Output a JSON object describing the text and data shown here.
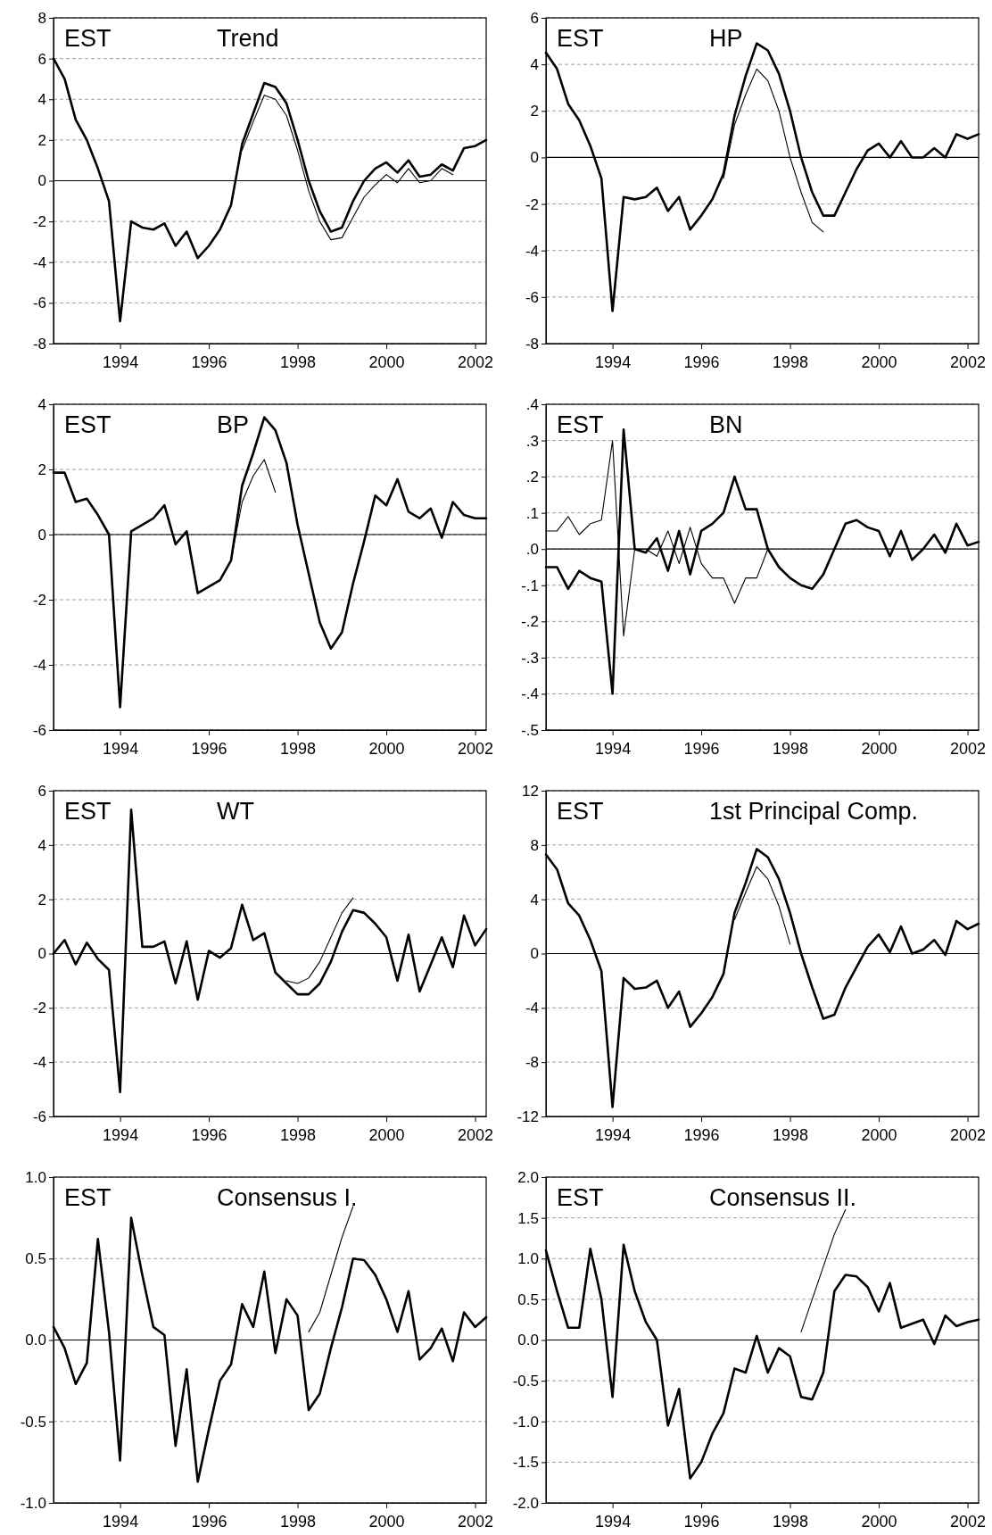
{
  "chart_data": [
    {
      "type": "line",
      "title": "Trend",
      "annotations": [
        "EST"
      ],
      "x": [
        1992.5,
        1992.75,
        1993,
        1993.25,
        1993.5,
        1993.75,
        1994,
        1994.25,
        1994.5,
        1994.75,
        1995,
        1995.25,
        1995.5,
        1995.75,
        1996,
        1996.25,
        1996.5,
        1996.75,
        1997,
        1997.25,
        1997.5,
        1997.75,
        1998,
        1998.25,
        1998.5,
        1998.75,
        1999,
        1999.25,
        1999.5,
        1999.75,
        2000,
        2000.25,
        2000.5,
        2000.75,
        2001,
        2001.25,
        2001.5,
        2001.75,
        2002,
        2002.25
      ],
      "xlim": [
        1992.5,
        2002.25
      ],
      "xticks": [
        1994,
        1996,
        1998,
        2000,
        2002
      ],
      "ylim": [
        -8,
        8
      ],
      "yticks": [
        -8,
        -6,
        -4,
        -2,
        0,
        2,
        4,
        6,
        8
      ],
      "grid": "y",
      "ref_lines": [
        {
          "axis": "y",
          "value": 0,
          "color": "#000000"
        }
      ],
      "series": [
        {
          "color": "#000000",
          "values": [
            6.0,
            5.0,
            3.0,
            2.0,
            0.6,
            -1.0,
            -6.9,
            -2.0,
            -2.3,
            -2.4,
            -2.1,
            -3.2,
            -2.5,
            -3.8,
            -3.2,
            -2.4,
            -1.2,
            1.8,
            3.3,
            4.8,
            4.6,
            3.8,
            2.0,
            0.0,
            -1.5,
            -2.5,
            -2.3,
            -1.0,
            0.0,
            0.6,
            0.9,
            0.4,
            1.0,
            0.2,
            0.3,
            0.8,
            0.5,
            1.6,
            1.7,
            2.0
          ]
        },
        {
          "color": "#000000",
          "values": [
            null,
            null,
            null,
            null,
            null,
            null,
            null,
            null,
            null,
            null,
            null,
            null,
            null,
            null,
            null,
            null,
            null,
            1.5,
            2.9,
            4.2,
            4.0,
            3.2,
            1.5,
            -0.5,
            -2.0,
            -2.9,
            -2.8,
            -1.8,
            -0.8,
            -0.2,
            0.3,
            -0.1,
            0.6,
            -0.1,
            0.0,
            0.6,
            0.3,
            null,
            null,
            null
          ]
        }
      ]
    },
    {
      "type": "line",
      "title": "HP",
      "annotations": [
        "EST"
      ],
      "x": [
        1992.5,
        1992.75,
        1993,
        1993.25,
        1993.5,
        1993.75,
        1994,
        1994.25,
        1994.5,
        1994.75,
        1995,
        1995.25,
        1995.5,
        1995.75,
        1996,
        1996.25,
        1996.5,
        1996.75,
        1997,
        1997.25,
        1997.5,
        1997.75,
        1998,
        1998.25,
        1998.5,
        1998.75,
        1999,
        1999.25,
        1999.5,
        1999.75,
        2000,
        2000.25,
        2000.5,
        2000.75,
        2001,
        2001.25,
        2001.5,
        2001.75,
        2002,
        2002.25
      ],
      "xlim": [
        1992.5,
        2002.25
      ],
      "xticks": [
        1994,
        1996,
        1998,
        2000,
        2002
      ],
      "ylim": [
        -8,
        6
      ],
      "yticks": [
        -8,
        -6,
        -4,
        -2,
        0,
        2,
        4,
        6
      ],
      "grid": "y",
      "ref_lines": [
        {
          "axis": "y",
          "value": 0,
          "color": "#000000"
        }
      ],
      "series": [
        {
          "color": "#000000",
          "values": [
            4.5,
            3.8,
            2.3,
            1.6,
            0.5,
            -0.9,
            -6.6,
            -1.7,
            -1.8,
            -1.7,
            -1.3,
            -2.3,
            -1.7,
            -3.1,
            -2.5,
            -1.8,
            -0.7,
            1.8,
            3.5,
            4.9,
            4.6,
            3.6,
            2.0,
            0.0,
            -1.5,
            -2.5,
            -2.5,
            -1.5,
            -0.5,
            0.3,
            0.6,
            0.0,
            0.7,
            0.0,
            0.0,
            0.4,
            0.0,
            1.0,
            0.8,
            1.0
          ]
        },
        {
          "color": "#000000",
          "values": [
            null,
            null,
            null,
            null,
            null,
            null,
            null,
            null,
            null,
            null,
            null,
            null,
            null,
            null,
            null,
            null,
            -0.9,
            1.4,
            2.7,
            3.8,
            3.3,
            2.0,
            0.0,
            -1.5,
            -2.8,
            -3.2,
            null,
            null,
            null,
            null,
            null,
            null,
            null,
            null,
            null,
            null,
            null,
            null,
            null,
            null
          ]
        }
      ]
    },
    {
      "type": "line",
      "title": "BP",
      "annotations": [
        "EST"
      ],
      "x": [
        1992.5,
        1992.75,
        1993,
        1993.25,
        1993.5,
        1993.75,
        1994,
        1994.25,
        1994.5,
        1994.75,
        1995,
        1995.25,
        1995.5,
        1995.75,
        1996,
        1996.25,
        1996.5,
        1996.75,
        1997,
        1997.25,
        1997.5,
        1997.75,
        1998,
        1998.25,
        1998.5,
        1998.75,
        1999,
        1999.25,
        1999.5,
        1999.75,
        2000,
        2000.25,
        2000.5,
        2000.75,
        2001,
        2001.25,
        2001.5,
        2001.75,
        2002,
        2002.25
      ],
      "xlim": [
        1992.5,
        2002.25
      ],
      "xticks": [
        1994,
        1996,
        1998,
        2000,
        2002
      ],
      "ylim": [
        -6,
        4
      ],
      "yticks": [
        -6,
        -4,
        -2,
        0,
        2,
        4
      ],
      "grid": "y",
      "ref_lines": [
        {
          "axis": "y",
          "value": 0,
          "color": "#000000"
        }
      ],
      "series": [
        {
          "color": "#000000",
          "values": [
            1.9,
            1.9,
            1.0,
            1.1,
            0.6,
            0.0,
            -5.3,
            0.1,
            0.3,
            0.5,
            0.9,
            -0.3,
            0.1,
            -1.8,
            -1.6,
            -1.4,
            -0.8,
            1.5,
            2.5,
            3.6,
            3.2,
            2.2,
            0.3,
            -1.2,
            -2.7,
            -3.5,
            -3.0,
            -1.5,
            -0.2,
            1.2,
            0.9,
            1.7,
            0.7,
            0.5,
            0.8,
            -0.1,
            1.0,
            0.6,
            0.5,
            0.5
          ]
        },
        {
          "color": "#000000",
          "values": [
            null,
            null,
            null,
            null,
            null,
            null,
            null,
            null,
            null,
            null,
            null,
            null,
            null,
            null,
            null,
            null,
            -0.8,
            1.0,
            1.8,
            2.3,
            1.3,
            null,
            null,
            null,
            null,
            null,
            null,
            null,
            null,
            null,
            null,
            null,
            null,
            null,
            null,
            null,
            null,
            null,
            null,
            null
          ]
        }
      ]
    },
    {
      "type": "line",
      "title": "BN",
      "annotations": [
        "EST"
      ],
      "x": [
        1992.5,
        1992.75,
        1993,
        1993.25,
        1993.5,
        1993.75,
        1994,
        1994.25,
        1994.5,
        1994.75,
        1995,
        1995.25,
        1995.5,
        1995.75,
        1996,
        1996.25,
        1996.5,
        1996.75,
        1997,
        1997.25,
        1997.5,
        1997.75,
        1998,
        1998.25,
        1998.5,
        1998.75,
        1999,
        1999.25,
        1999.5,
        1999.75,
        2000,
        2000.25,
        2000.5,
        2000.75,
        2001,
        2001.25,
        2001.5,
        2001.75,
        2002,
        2002.25
      ],
      "xlim": [
        1992.5,
        2002.25
      ],
      "xticks": [
        1994,
        1996,
        1998,
        2000,
        2002
      ],
      "ylim": [
        -0.5,
        0.4
      ],
      "yticks": [
        {
          "value": -0.5,
          "label": "-.5"
        },
        {
          "value": -0.4,
          "label": "-.4"
        },
        {
          "value": -0.3,
          "label": "-.3"
        },
        {
          "value": -0.2,
          "label": "-.2"
        },
        {
          "value": -0.1,
          "label": "-.1"
        },
        {
          "value": 0,
          "label": ".0"
        },
        {
          "value": 0.1,
          "label": ".1"
        },
        {
          "value": 0.2,
          "label": ".2"
        },
        {
          "value": 0.3,
          "label": ".3"
        },
        {
          "value": 0.4,
          "label": ".4"
        }
      ],
      "grid": "y",
      "ref_lines": [
        {
          "axis": "y",
          "value": 0,
          "color": "#000000"
        }
      ],
      "series": [
        {
          "color": "#000000",
          "values": [
            -0.05,
            -0.05,
            -0.11,
            -0.06,
            -0.08,
            -0.09,
            -0.4,
            0.33,
            0.0,
            -0.01,
            0.03,
            -0.06,
            0.05,
            -0.07,
            0.05,
            0.07,
            0.1,
            0.2,
            0.11,
            0.11,
            0.0,
            -0.05,
            -0.08,
            -0.1,
            -0.11,
            -0.07,
            0.0,
            0.07,
            0.08,
            0.06,
            0.05,
            -0.02,
            0.05,
            -0.03,
            0.0,
            0.04,
            -0.01,
            0.07,
            0.01,
            0.02
          ]
        },
        {
          "color": "#000000",
          "values": [
            0.05,
            0.05,
            0.09,
            0.04,
            0.07,
            0.08,
            0.3,
            -0.24,
            0.0,
            0.0,
            -0.02,
            0.05,
            -0.04,
            0.06,
            -0.04,
            -0.08,
            -0.08,
            -0.15,
            -0.08,
            -0.08,
            0.0,
            null,
            null,
            null,
            null,
            null,
            null,
            null,
            null,
            null,
            null,
            null,
            null,
            null,
            null,
            null,
            null,
            null,
            null,
            null
          ]
        }
      ]
    },
    {
      "type": "line",
      "title": "WT",
      "annotations": [
        "EST"
      ],
      "x": [
        1992.5,
        1992.75,
        1993,
        1993.25,
        1993.5,
        1993.75,
        1994,
        1994.25,
        1994.5,
        1994.75,
        1995,
        1995.25,
        1995.5,
        1995.75,
        1996,
        1996.25,
        1996.5,
        1996.75,
        1997,
        1997.25,
        1997.5,
        1997.75,
        1998,
        1998.25,
        1998.5,
        1998.75,
        1999,
        1999.25,
        1999.5,
        1999.75,
        2000,
        2000.25,
        2000.5,
        2000.75,
        2001,
        2001.25,
        2001.5,
        2001.75,
        2002,
        2002.25
      ],
      "xlim": [
        1992.5,
        2002.25
      ],
      "xticks": [
        1994,
        1996,
        1998,
        2000,
        2002
      ],
      "ylim": [
        -6,
        6
      ],
      "yticks": [
        -6,
        -4,
        -2,
        0,
        2,
        4,
        6
      ],
      "grid": "y",
      "ref_lines": [
        {
          "axis": "y",
          "value": 0,
          "color": "#000000"
        }
      ],
      "series": [
        {
          "color": "#000000",
          "values": [
            0.0,
            0.5,
            -0.4,
            0.4,
            -0.2,
            -0.6,
            -5.1,
            5.3,
            0.25,
            0.25,
            0.45,
            -1.1,
            0.45,
            -1.7,
            0.1,
            -0.15,
            0.2,
            1.8,
            0.5,
            0.75,
            -0.7,
            -1.1,
            -1.5,
            -1.5,
            -1.1,
            -0.3,
            0.8,
            1.6,
            1.5,
            1.1,
            0.6,
            -1.0,
            0.7,
            -1.4,
            -0.4,
            0.6,
            -0.5,
            1.4,
            0.3,
            0.9
          ]
        },
        {
          "color": "#000000",
          "values": [
            null,
            null,
            null,
            null,
            null,
            null,
            null,
            null,
            null,
            null,
            null,
            null,
            null,
            null,
            null,
            null,
            null,
            null,
            null,
            null,
            null,
            -1.0,
            -1.1,
            -0.9,
            -0.3,
            0.6,
            1.5,
            2.05,
            null,
            null,
            null,
            null,
            null,
            null,
            null,
            null,
            null,
            null,
            null,
            null
          ]
        }
      ]
    },
    {
      "type": "line",
      "title": "1st Principal Comp.",
      "annotations": [
        "EST"
      ],
      "x": [
        1992.5,
        1992.75,
        1993,
        1993.25,
        1993.5,
        1993.75,
        1994,
        1994.25,
        1994.5,
        1994.75,
        1995,
        1995.25,
        1995.5,
        1995.75,
        1996,
        1996.25,
        1996.5,
        1996.75,
        1997,
        1997.25,
        1997.5,
        1997.75,
        1998,
        1998.25,
        1998.5,
        1998.75,
        1999,
        1999.25,
        1999.5,
        1999.75,
        2000,
        2000.25,
        2000.5,
        2000.75,
        2001,
        2001.25,
        2001.5,
        2001.75,
        2002,
        2002.25
      ],
      "xlim": [
        1992.5,
        2002.25
      ],
      "xticks": [
        1994,
        1996,
        1998,
        2000,
        2002
      ],
      "ylim": [
        -12,
        12
      ],
      "yticks": [
        -12,
        -8,
        -4,
        0,
        4,
        8,
        12
      ],
      "grid": "y",
      "ref_lines": [
        {
          "axis": "y",
          "value": 0,
          "color": "#000000"
        }
      ],
      "series": [
        {
          "color": "#000000",
          "values": [
            7.3,
            6.2,
            3.7,
            2.8,
            1.0,
            -1.3,
            -11.3,
            -1.8,
            -2.6,
            -2.5,
            -2.0,
            -4.0,
            -2.8,
            -5.4,
            -4.4,
            -3.2,
            -1.5,
            3.0,
            5.2,
            7.7,
            7.1,
            5.5,
            3.0,
            0.0,
            -2.5,
            -4.8,
            -4.5,
            -2.5,
            -1.0,
            0.5,
            1.4,
            0.1,
            2.0,
            0.0,
            0.3,
            1.0,
            -0.1,
            2.4,
            1.8,
            2.2
          ]
        },
        {
          "color": "#000000",
          "values": [
            null,
            null,
            null,
            null,
            null,
            null,
            null,
            null,
            null,
            null,
            null,
            null,
            null,
            null,
            null,
            null,
            null,
            2.5,
            4.5,
            6.4,
            5.5,
            3.5,
            0.7,
            null,
            null,
            null,
            null,
            null,
            null,
            null,
            null,
            null,
            null,
            null,
            null,
            null,
            null,
            null,
            null,
            null
          ]
        }
      ]
    },
    {
      "type": "line",
      "title": "Consensus I.",
      "annotations": [
        "EST"
      ],
      "x": [
        1992.5,
        1992.75,
        1993,
        1993.25,
        1993.5,
        1993.75,
        1994,
        1994.25,
        1994.5,
        1994.75,
        1995,
        1995.25,
        1995.5,
        1995.75,
        1996,
        1996.25,
        1996.5,
        1996.75,
        1997,
        1997.25,
        1997.5,
        1997.75,
        1998,
        1998.25,
        1998.5,
        1998.75,
        1999,
        1999.25,
        1999.5,
        1999.75,
        2000,
        2000.25,
        2000.5,
        2000.75,
        2001,
        2001.25,
        2001.5,
        2001.75,
        2002,
        2002.25
      ],
      "xlim": [
        1992.5,
        2002.25
      ],
      "xticks": [
        1994,
        1996,
        1998,
        2000,
        2002
      ],
      "ylim": [
        -1,
        1
      ],
      "yticks": [
        {
          "value": -1,
          "label": "-1.0"
        },
        {
          "value": -0.5,
          "label": "-0.5"
        },
        {
          "value": 0,
          "label": "0.0"
        },
        {
          "value": 0.5,
          "label": "0.5"
        },
        {
          "value": 1,
          "label": "1.0"
        }
      ],
      "grid": "y",
      "ref_lines": [
        {
          "axis": "y",
          "value": 0,
          "color": "#000000"
        }
      ],
      "series": [
        {
          "color": "#000000",
          "values": [
            0.08,
            -0.05,
            -0.27,
            -0.14,
            0.62,
            0.05,
            -0.74,
            0.75,
            0.4,
            0.08,
            0.03,
            -0.65,
            -0.18,
            -0.87,
            -0.55,
            -0.25,
            -0.15,
            0.22,
            0.08,
            0.42,
            -0.08,
            0.25,
            0.15,
            -0.43,
            -0.33,
            -0.05,
            0.2,
            0.5,
            0.49,
            0.4,
            0.25,
            0.05,
            0.3,
            -0.12,
            -0.05,
            0.07,
            -0.13,
            0.17,
            0.08,
            0.14
          ]
        },
        {
          "color": "#000000",
          "values": [
            null,
            null,
            null,
            null,
            null,
            null,
            null,
            null,
            null,
            null,
            null,
            null,
            null,
            null,
            null,
            null,
            null,
            null,
            null,
            null,
            null,
            null,
            null,
            0.05,
            0.17,
            0.4,
            0.63,
            0.82,
            null,
            null,
            null,
            null,
            null,
            null,
            null,
            null,
            null,
            null,
            null,
            null
          ]
        }
      ]
    },
    {
      "type": "line",
      "title": "Consensus II.",
      "annotations": [
        "EST"
      ],
      "x": [
        1992.5,
        1992.75,
        1993,
        1993.25,
        1993.5,
        1993.75,
        1994,
        1994.25,
        1994.5,
        1994.75,
        1995,
        1995.25,
        1995.5,
        1995.75,
        1996,
        1996.25,
        1996.5,
        1996.75,
        1997,
        1997.25,
        1997.5,
        1997.75,
        1998,
        1998.25,
        1998.5,
        1998.75,
        1999,
        1999.25,
        1999.5,
        1999.75,
        2000,
        2000.25,
        2000.5,
        2000.75,
        2001,
        2001.25,
        2001.5,
        2001.75,
        2002,
        2002.25
      ],
      "xlim": [
        1992.5,
        2002.25
      ],
      "xticks": [
        1994,
        1996,
        1998,
        2000,
        2002
      ],
      "ylim": [
        -2,
        2
      ],
      "yticks": [
        {
          "value": -2,
          "label": "-2.0"
        },
        {
          "value": -1.5,
          "label": "-1.5"
        },
        {
          "value": -1,
          "label": "-1.0"
        },
        {
          "value": -0.5,
          "label": "-0.5"
        },
        {
          "value": 0,
          "label": "0.0"
        },
        {
          "value": 0.5,
          "label": "0.5"
        },
        {
          "value": 1,
          "label": "1.0"
        },
        {
          "value": 1.5,
          "label": "1.5"
        },
        {
          "value": 2,
          "label": "2.0"
        }
      ],
      "grid": "y",
      "ref_lines": [
        {
          "axis": "y",
          "value": 0,
          "color": "#000000"
        }
      ],
      "series": [
        {
          "color": "#000000",
          "values": [
            1.1,
            0.6,
            0.15,
            0.15,
            1.12,
            0.5,
            -0.7,
            1.17,
            0.6,
            0.22,
            0.0,
            -1.05,
            -0.6,
            -1.7,
            -1.5,
            -1.15,
            -0.9,
            -0.35,
            -0.4,
            0.05,
            -0.4,
            -0.1,
            -0.2,
            -0.7,
            -0.73,
            -0.4,
            0.6,
            0.8,
            0.78,
            0.65,
            0.35,
            0.7,
            0.15,
            0.2,
            0.25,
            -0.05,
            0.3,
            0.17,
            0.22,
            0.25
          ]
        },
        {
          "color": "#000000",
          "values": [
            null,
            null,
            null,
            null,
            null,
            null,
            null,
            null,
            null,
            null,
            null,
            null,
            null,
            null,
            null,
            null,
            null,
            null,
            null,
            null,
            null,
            null,
            null,
            0.1,
            0.5,
            0.9,
            1.3,
            1.6,
            null,
            null,
            null,
            null,
            null,
            null,
            null,
            null,
            null,
            null,
            null,
            null
          ]
        }
      ]
    }
  ]
}
